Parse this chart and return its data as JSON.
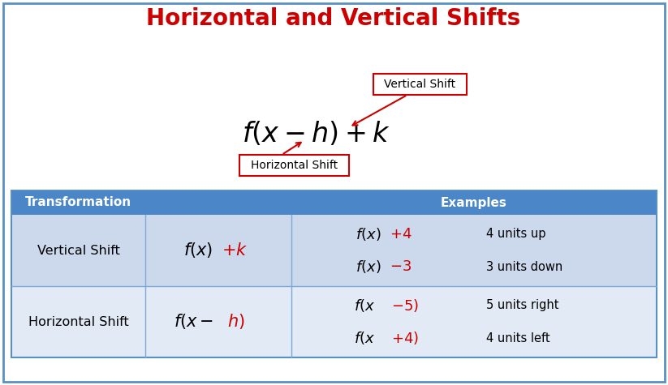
{
  "title": "Horizontal and Vertical Shifts",
  "title_color": "#cc0000",
  "title_fontsize": 20,
  "bg_color": "#ffffff",
  "border_color": "#5a8fc2",
  "vertical_shift_label": "Vertical Shift",
  "horizontal_shift_label": "Horizontal Shift",
  "label_box_color": "#ffffff",
  "label_box_edge": "#cc0000",
  "arrow_color": "#cc0000",
  "table_header_bg": "#4a86c8",
  "table_header_text": "#ffffff",
  "table_row1_bg": "#ccd9ed",
  "table_row2_bg": "#e2eaf5",
  "table_col1": "Transformation",
  "table_col2": "Examples",
  "row1_name": "Vertical Shift",
  "row1_ex1_suffix": "4 units up",
  "row1_ex2_suffix": "3 units down",
  "row2_name": "Horizontal Shift",
  "row2_ex1_suffix": "5 units right",
  "row2_ex2_suffix": "4 units left",
  "red_color": "#cc0000",
  "black_color": "#000000"
}
